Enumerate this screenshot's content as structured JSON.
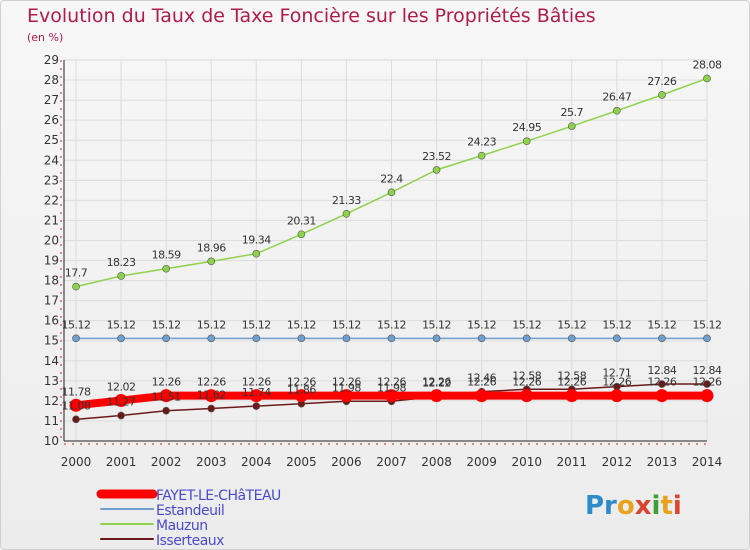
{
  "title": "Evolution du Taux de Taxe Foncière sur les Propriétés Bâties",
  "unit_label": "(en %)",
  "logo": {
    "text": "Proxiti"
  },
  "chart_data": {
    "type": "line",
    "title": "Evolution du Taux de Taxe Foncière sur les Propriétés Bâties",
    "ylabel": "(en %)",
    "xlabel": "",
    "ylim": [
      10,
      29
    ],
    "yticks": [
      10,
      11,
      12,
      13,
      14,
      15,
      16,
      17,
      18,
      19,
      20,
      21,
      22,
      23,
      24,
      25,
      26,
      27,
      28,
      29
    ],
    "x": [
      "2000",
      "2001",
      "2002",
      "2003",
      "2004",
      "2005",
      "2006",
      "2007",
      "2008",
      "2009",
      "2010",
      "2011",
      "2012",
      "2013",
      "2014"
    ],
    "grid": true,
    "legend_position": "bottom-left",
    "series": [
      {
        "name": "FAYET-LE-CHâTEAU",
        "color": "#ff0000",
        "values": [
          11.78,
          12.02,
          12.26,
          12.26,
          12.26,
          12.26,
          12.26,
          12.26,
          12.26,
          12.26,
          12.26,
          12.26,
          12.26,
          12.26,
          12.26
        ],
        "labels": [
          "11.78",
          "12.02",
          "12.26",
          "12.26",
          "12.26",
          "12.26",
          "12.26",
          "12.26",
          "12.26",
          "12.26",
          "12.26",
          "12.26",
          "12.26",
          "12.26",
          "12.26"
        ]
      },
      {
        "name": "Estandeuil",
        "color": "#6f9fd0",
        "values": [
          15.12,
          15.12,
          15.12,
          15.12,
          15.12,
          15.12,
          15.12,
          15.12,
          15.12,
          15.12,
          15.12,
          15.12,
          15.12,
          15.12,
          15.12
        ],
        "labels": [
          "15.12",
          "15.12",
          "15.12",
          "15.12",
          "15.12",
          "15.12",
          "15.12",
          "15.12",
          "15.12",
          "15.12",
          "15.12",
          "15.12",
          "15.12",
          "15.12",
          "15.12"
        ]
      },
      {
        "name": "Mauzun",
        "color": "#8ed24b",
        "values": [
          17.7,
          18.23,
          18.59,
          18.96,
          19.34,
          20.31,
          21.33,
          22.4,
          23.52,
          24.23,
          24.95,
          25.7,
          26.47,
          27.26,
          28.08
        ],
        "labels": [
          "17.7",
          "18.23",
          "18.59",
          "18.96",
          "19.34",
          "20.31",
          "21.33",
          "22.4",
          "23.52",
          "24.23",
          "24.95",
          "25.7",
          "26.47",
          "27.26",
          "28.08"
        ]
      },
      {
        "name": "Isserteaux",
        "color": "#6b1a1a",
        "values": [
          11.08,
          11.27,
          11.51,
          11.62,
          11.74,
          11.86,
          11.98,
          11.98,
          12.22,
          12.46,
          12.58,
          12.58,
          12.71,
          12.84,
          12.84
        ],
        "labels": [
          "11.08",
          "11.27",
          "11.51",
          "11.62",
          "11.74",
          "11.86",
          "11.98",
          "11.98",
          "12.22",
          "12.46",
          "12.58",
          "12.58",
          "12.71",
          "12.84",
          "12.84"
        ]
      }
    ]
  }
}
